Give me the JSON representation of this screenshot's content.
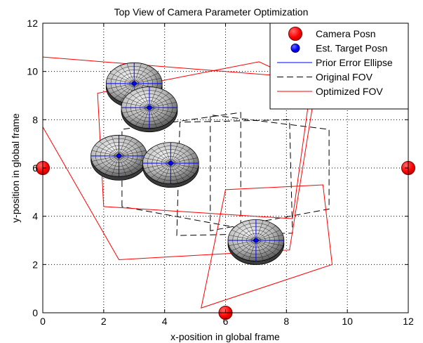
{
  "chart_data": {
    "type": "scatter",
    "title": "Top View of Camera Parameter Optimization",
    "xlabel": "x-position in global frame",
    "ylabel": "y-position in global frame",
    "xlim": [
      0,
      12
    ],
    "ylim": [
      0,
      12
    ],
    "xticks": [
      "0",
      "2",
      "4",
      "6",
      "8",
      "10",
      "12"
    ],
    "yticks": [
      "0",
      "2",
      "4",
      "6",
      "8",
      "10",
      "12"
    ],
    "grid": "dotted",
    "legend_position": "top-right",
    "legend": [
      {
        "label": "Camera Posn",
        "style": "marker",
        "color": "#ff0000"
      },
      {
        "label": "Est. Target Posn",
        "style": "marker",
        "color": "#0000ff"
      },
      {
        "label": "Prior Error Ellipse",
        "style": "line",
        "color": "#0000ff"
      },
      {
        "label": "Original FOV",
        "style": "dashed",
        "color": "#000000"
      },
      {
        "label": "Optimized FOV",
        "style": "line",
        "color": "#ff0000"
      }
    ],
    "cameras": [
      {
        "x": 0,
        "y": 6
      },
      {
        "x": 6,
        "y": 0
      },
      {
        "x": 12,
        "y": 6
      }
    ],
    "targets": [
      {
        "x": 3.0,
        "y": 9.5
      },
      {
        "x": 3.5,
        "y": 8.5
      },
      {
        "x": 2.5,
        "y": 6.5
      },
      {
        "x": 4.2,
        "y": 6.2
      },
      {
        "x": 7.0,
        "y": 3.0
      }
    ],
    "original_fov": [
      [
        [
          5.5,
          3.4
        ],
        [
          5.5,
          8.2
        ],
        [
          9.4,
          7.6
        ],
        [
          9.4,
          4.3
        ]
      ],
      [
        [
          2.6,
          4.4
        ],
        [
          2.6,
          7.6
        ],
        [
          6.5,
          8.3
        ],
        [
          6.5,
          3.5
        ]
      ],
      [
        [
          4.4,
          3.2
        ],
        [
          4.5,
          7.9
        ],
        [
          8.1,
          8.0
        ],
        [
          8.2,
          3.3
        ]
      ]
    ],
    "optimized_fov": [
      [
        [
          0,
          10.6
        ],
        [
          9.0,
          9.7
        ],
        [
          8.1,
          2.6
        ],
        [
          2.5,
          2.2
        ],
        [
          0,
          7.7
        ]
      ],
      [
        [
          1.8,
          9.1
        ],
        [
          2.0,
          4.4
        ],
        [
          8.2,
          3.9
        ],
        [
          8.8,
          9.4
        ],
        [
          7.1,
          10.4
        ]
      ],
      [
        [
          5.2,
          0.2
        ],
        [
          9.5,
          2.0
        ],
        [
          9.2,
          5.3
        ],
        [
          6.0,
          5.1
        ]
      ]
    ],
    "error_ellipse_radii": [
      {
        "rx": 0.92,
        "ry": 0.68
      },
      {
        "rx": 0.92,
        "ry": 0.68
      },
      {
        "rx": 0.92,
        "ry": 0.68
      },
      {
        "rx": 0.92,
        "ry": 0.68
      },
      {
        "rx": 0.92,
        "ry": 0.68
      }
    ],
    "colors": {
      "camera": "#ff0000",
      "target": "#0000ff",
      "ellipse_line": "#0000ff",
      "ellipse_fill": "#c8c8c8",
      "original_fov": "#000000",
      "optimized_fov": "#ff0000"
    }
  }
}
